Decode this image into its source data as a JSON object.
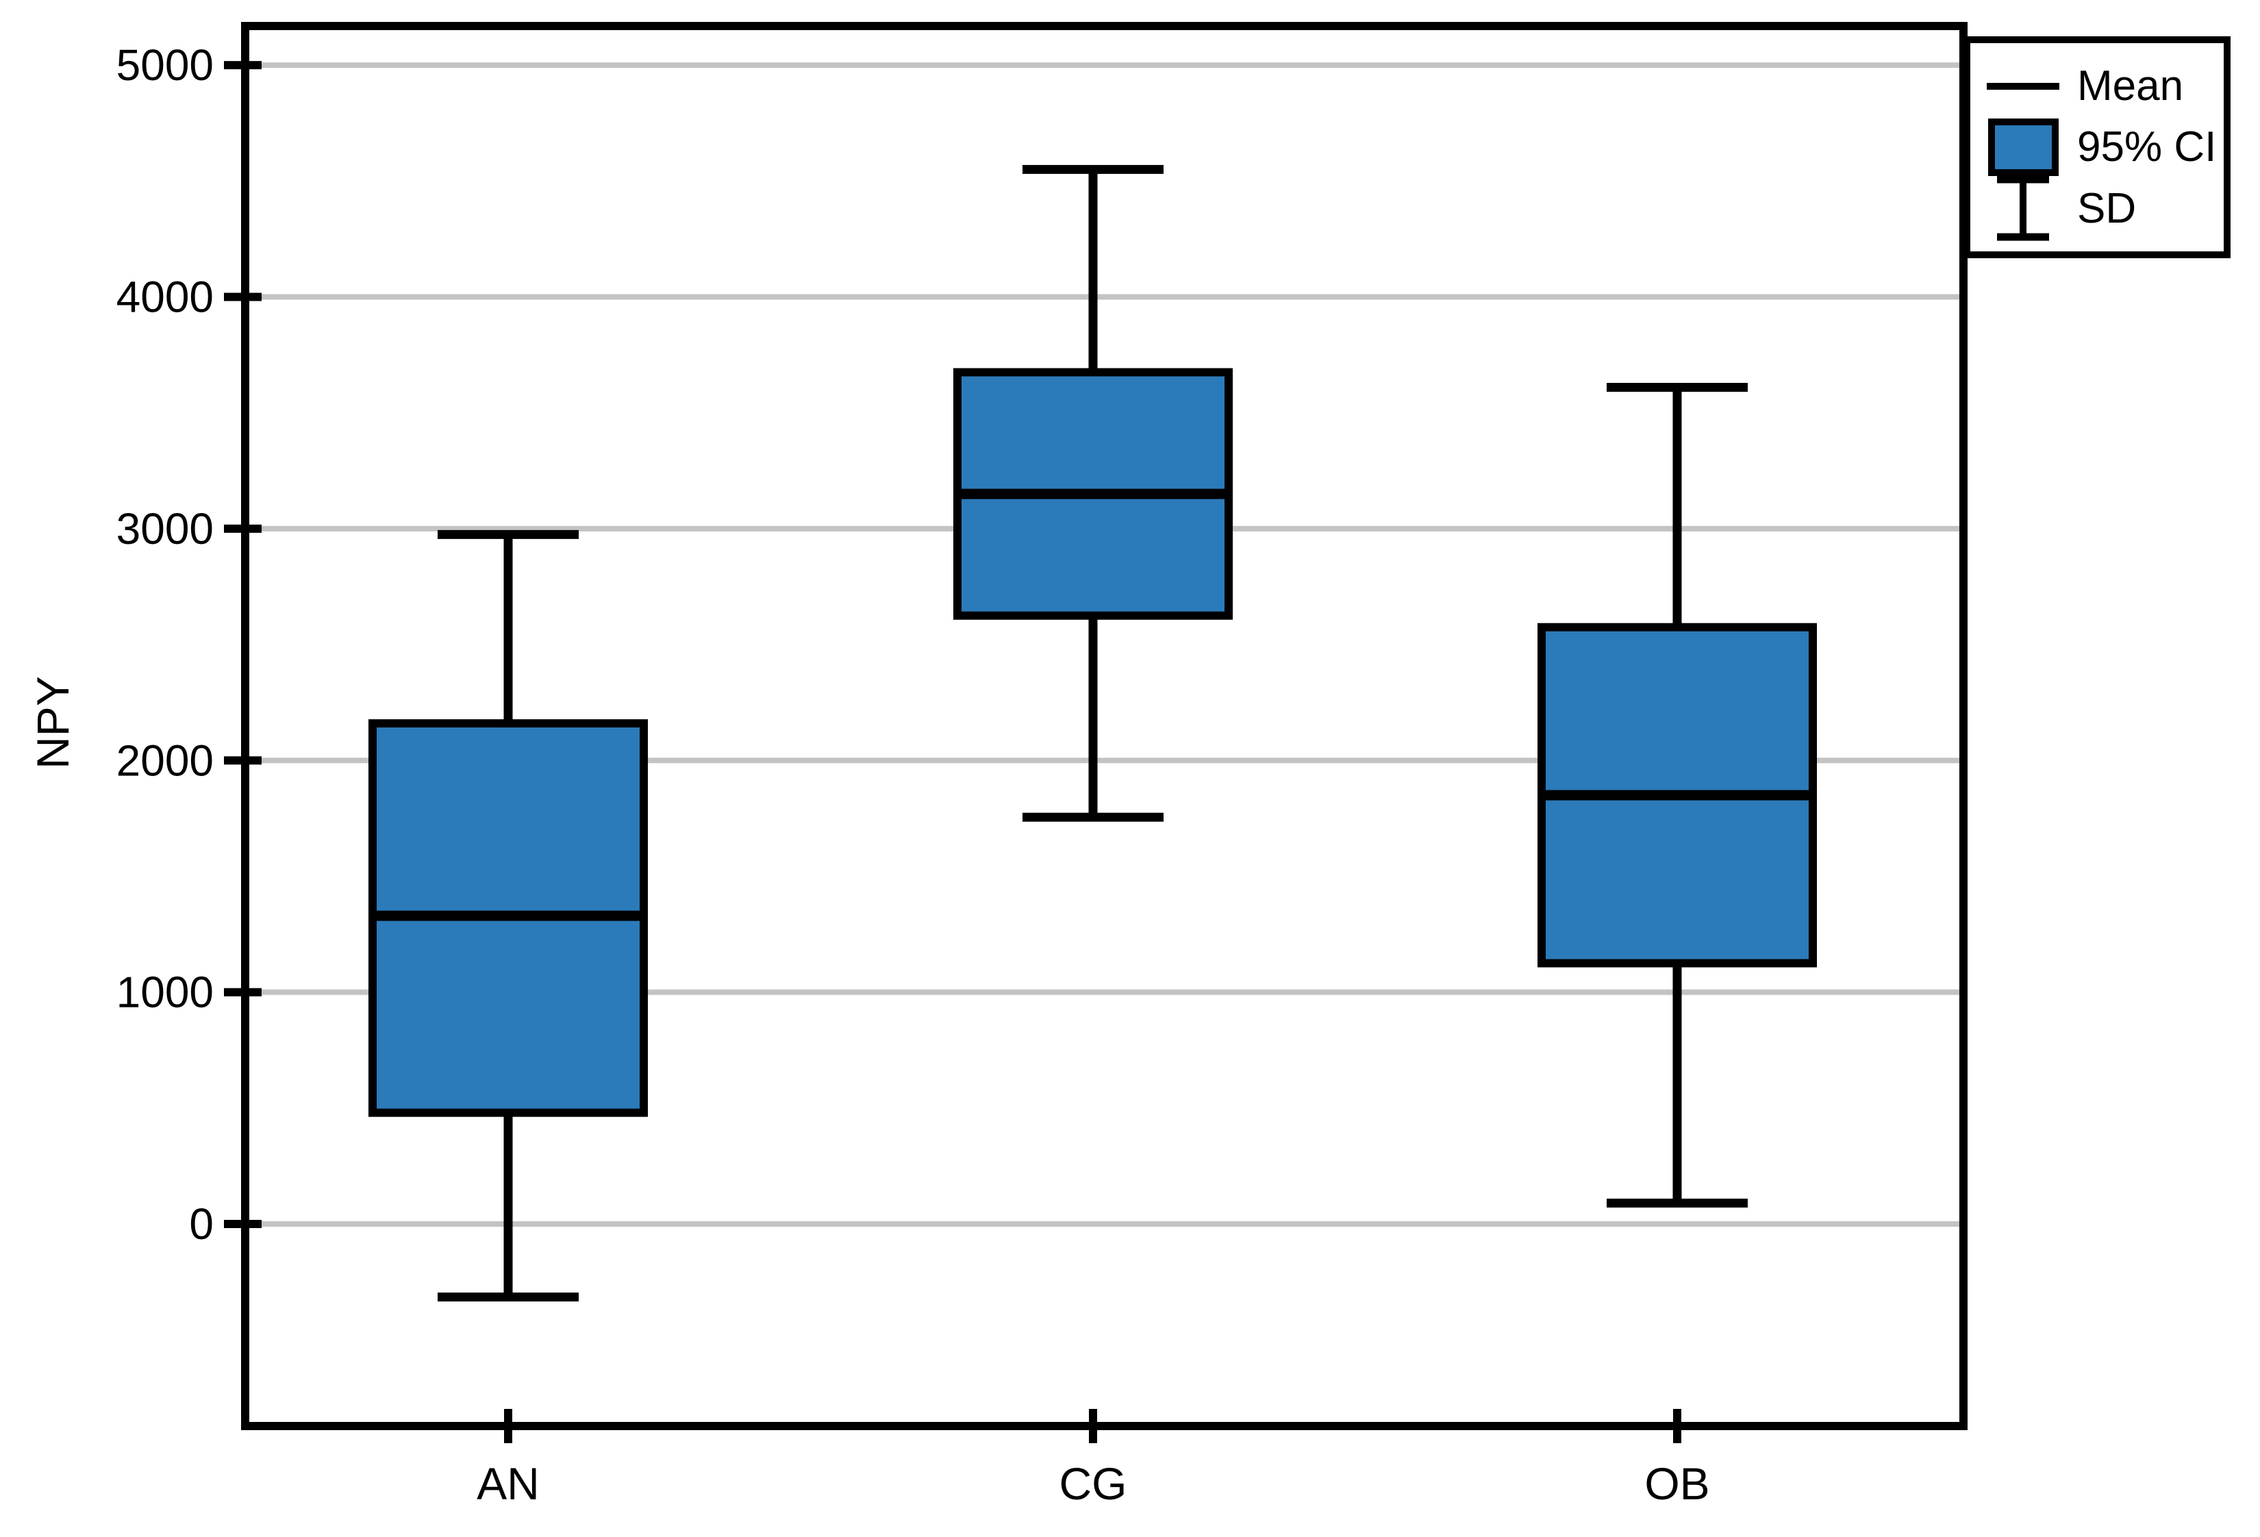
{
  "chart_data": {
    "type": "box",
    "title": "",
    "xlabel": "",
    "ylabel": "NPY",
    "categories": [
      "AN",
      "CG",
      "OB"
    ],
    "yticks": [
      0,
      1000,
      2000,
      3000,
      4000,
      5000
    ],
    "ylim": [
      -870,
      5170
    ],
    "grid": "horizontal-gray-lines",
    "legend": {
      "position": "top-right",
      "items": [
        {
          "label": "Mean",
          "swatch": "horizontal-line"
        },
        {
          "label": "95% CI",
          "swatch": "filled-box"
        },
        {
          "label": "SD",
          "swatch": "error-bar"
        }
      ]
    },
    "series": [
      {
        "category": "AN",
        "mean": 1330,
        "ci95_low": 480,
        "ci95_high": 2160,
        "sd_low": -315,
        "sd_high": 2975
      },
      {
        "category": "CG",
        "mean": 3150,
        "ci95_low": 2625,
        "ci95_high": 3675,
        "sd_low": 1755,
        "sd_high": 4550
      },
      {
        "category": "OB",
        "mean": 1850,
        "ci95_low": 1125,
        "ci95_high": 2575,
        "sd_low": 90,
        "sd_high": 3610
      }
    ],
    "colors": {
      "box_fill": "#2b7bba",
      "box_border": "#000000",
      "mean_line": "#000000",
      "whisker": "#000000",
      "grid": "#c3c3c3",
      "axis": "#000000",
      "background": "#ffffff"
    }
  }
}
